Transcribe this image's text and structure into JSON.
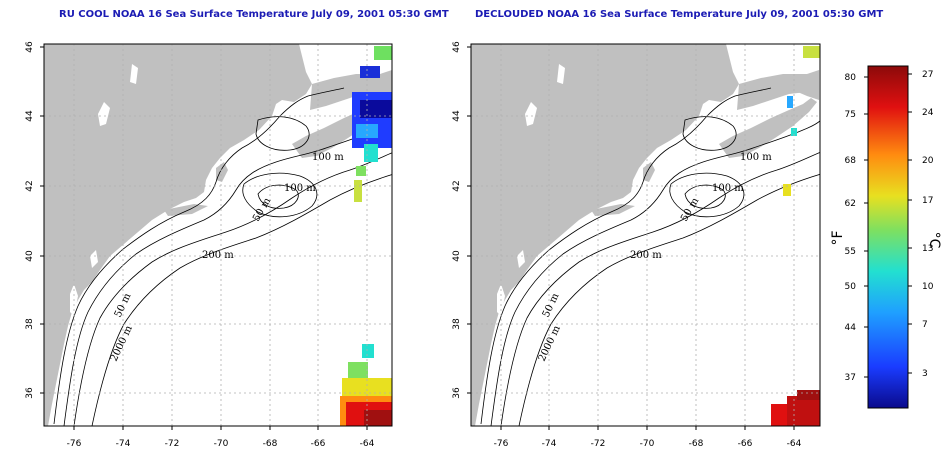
{
  "panels": [
    {
      "id": "left",
      "title": "RU COOL NOAA 16 Sea Surface Temperature July 09, 2001 05:30 GMT",
      "contour_labels": [
        "100 m",
        "100 m",
        "50 m",
        "200 m",
        "50 m",
        "2000 m"
      ]
    },
    {
      "id": "right",
      "title": "DECLOUDED NOAA 16 Sea Surface Temperature July 09, 2001 05:30 GMT",
      "contour_labels": [
        "100 m",
        "100 m",
        "50 m",
        "200 m",
        "50 m",
        "2000 m"
      ]
    }
  ],
  "axes": {
    "x_ticks": [
      "-76",
      "-74",
      "-72",
      "-70",
      "-68",
      "-66",
      "-64"
    ],
    "y_ticks": [
      "46",
      "44",
      "42",
      "40",
      "38",
      "36"
    ]
  },
  "colorbar": {
    "fahrenheit_ticks": [
      "80",
      "75",
      "68",
      "62",
      "55",
      "50",
      "44",
      "37"
    ],
    "celsius_ticks": [
      "27",
      "24",
      "20",
      "17",
      "13",
      "10",
      "7",
      "3"
    ],
    "f_unit": "°F",
    "c_unit": "°C",
    "colors": [
      "#0a0a8c",
      "#1a3cff",
      "#1fa0ff",
      "#22e0d0",
      "#7ee060",
      "#e8e020",
      "#ff8c10",
      "#e01010",
      "#8c0a0a"
    ]
  },
  "colors": {
    "land": "#c0c0c0",
    "ocean": "#ffffff",
    "title": "#1b1bb4",
    "grid": "#b0b0b0"
  }
}
